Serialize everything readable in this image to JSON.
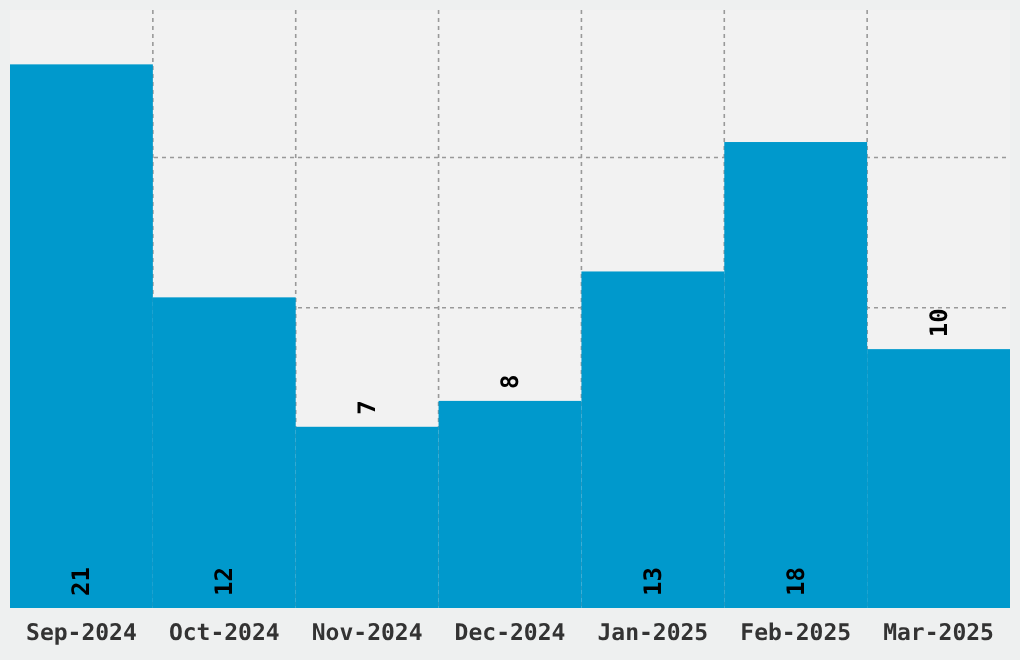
{
  "chart_data": {
    "type": "bar",
    "categories": [
      "Sep-2024",
      "Oct-2024",
      "Nov-2024",
      "Dec-2024",
      "Jan-2025",
      "Feb-2025",
      "Mar-2025"
    ],
    "values": [
      21,
      12,
      7,
      8,
      13,
      18,
      10
    ],
    "color": "#0099cc",
    "ylim": [
      0,
      23.1
    ],
    "yticks": [
      {
        "value": 5.8,
        "label": null
      },
      {
        "value": 11.6,
        "label": null
      },
      {
        "value": 17.4,
        "label": null
      }
    ],
    "tick_labels": "x",
    "grid": true,
    "data_labels": true
  }
}
